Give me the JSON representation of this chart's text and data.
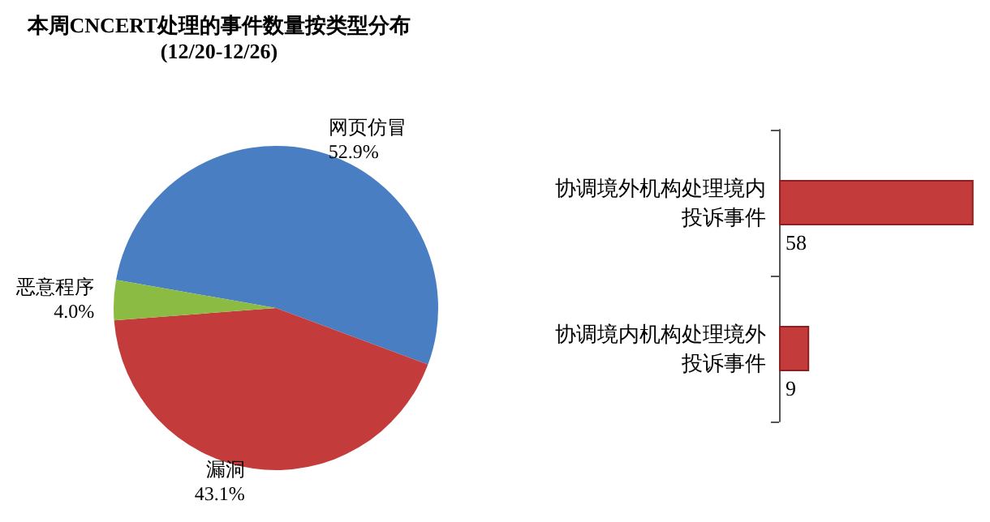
{
  "chart_data": [
    {
      "type": "pie",
      "title": "本周CNCERT处理的事件数量按类型分布",
      "subtitle": "(12/20-12/26)",
      "categories": [
        "网页仿冒",
        "漏洞",
        "恶意程序"
      ],
      "values": [
        52.9,
        43.1,
        4.0
      ],
      "colors": [
        "#4a7ec2",
        "#c43b3b",
        "#8cbb43"
      ],
      "value_labels": [
        "52.9%",
        "43.1%",
        "4.0%"
      ],
      "legend": false
    },
    {
      "type": "bar",
      "orientation": "horizontal",
      "categories": [
        "协调境外机构处理境内投诉事件",
        "协调境内机构处理境外投诉事件"
      ],
      "values": [
        58,
        9
      ],
      "color": "#c43b3b",
      "data_labels": true,
      "legend": false
    }
  ]
}
